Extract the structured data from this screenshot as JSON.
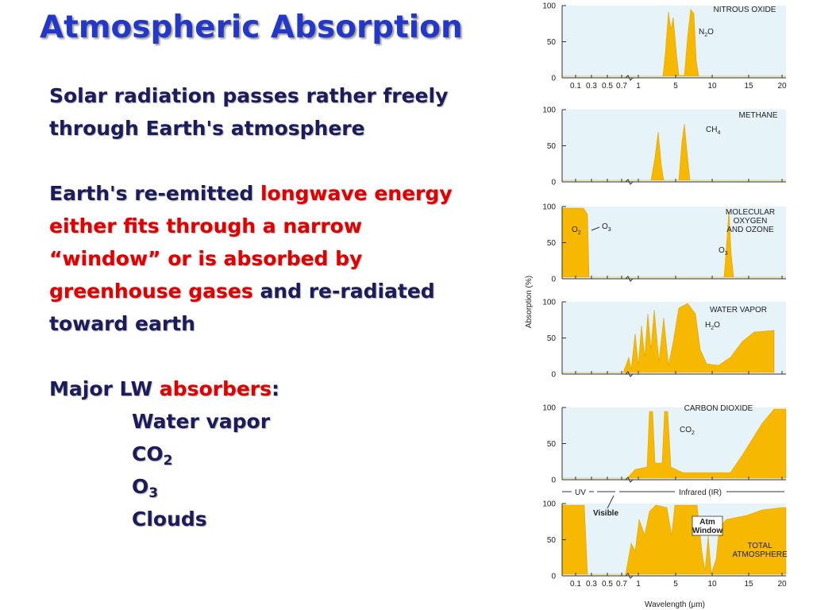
{
  "title": "Atmospheric Absorption",
  "body": {
    "paragraph_1": "Solar radiation passes rather freely through Earth's atmosphere",
    "paragraph_2": {
      "lead": "Earth's re-emitted ",
      "highlight": "longwave energy either fits through a narrow “window” or is absorbed by greenhouse gases",
      "tail": " and re-radiated toward earth"
    },
    "absorbers_heading": {
      "lead": "Major LW ",
      "highlight": "absorbers",
      "tail": ":"
    },
    "absorbers": [
      {
        "text": "Water vapor"
      },
      {
        "base": "CO",
        "sub": "2"
      },
      {
        "base": "O",
        "sub": "3"
      },
      {
        "text": "Clouds"
      }
    ]
  },
  "figure": {
    "y_axis_label": "Absorption (%)",
    "x_axis_label": "Wavelength (μm)",
    "yticks": [
      0,
      50,
      100
    ],
    "xticks": [
      0.1,
      0.3,
      0.5,
      0.7,
      1,
      5,
      10,
      15,
      20
    ],
    "panels": [
      {
        "name_lines": [
          "NITROUS OXIDE"
        ],
        "formula": {
          "base": "N",
          "sub": "2",
          "tail": "O"
        }
      },
      {
        "name_lines": [
          "METHANE"
        ],
        "formula": {
          "base": "CH",
          "sub": "4"
        }
      },
      {
        "name_lines": [
          "MOLECULAR",
          "OXYGEN",
          "AND OZONE"
        ],
        "formula": {
          "base": "O",
          "sub": "3"
        },
        "extra_labels": [
          {
            "base": "O",
            "sub": "2"
          },
          {
            "base": "O",
            "sub": "3"
          }
        ]
      },
      {
        "name_lines": [
          "WATER VAPOR"
        ],
        "formula": {
          "base": "H",
          "sub": "2",
          "tail": "O"
        }
      },
      {
        "name_lines": [
          "CARBON DIOXIDE"
        ],
        "formula": {
          "base": "CO",
          "sub": "2"
        }
      },
      {
        "name_lines": [
          "TOTAL",
          "ATMOSPHERE"
        ]
      }
    ],
    "bands": {
      "uv": "UV",
      "visible": "Visible",
      "infrared": "Infrared (IR)",
      "atm_window": [
        "Atm",
        "Window"
      ]
    }
  }
}
